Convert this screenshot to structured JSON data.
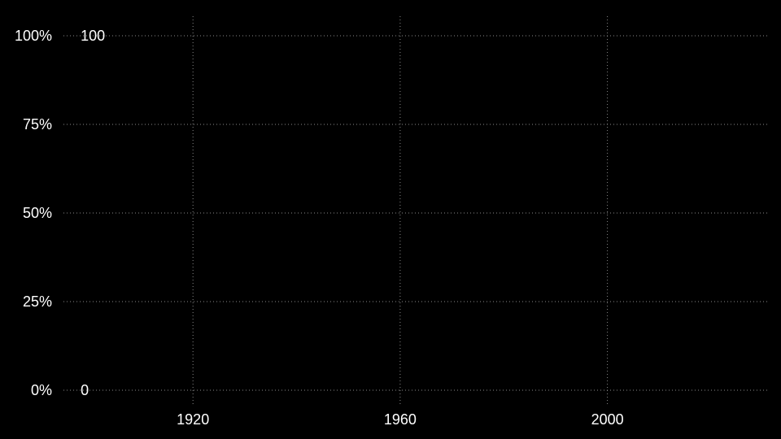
{
  "chart_data": {
    "type": "line",
    "title": "",
    "xlabel": "",
    "ylabel": "",
    "background": "#000000",
    "text_color": "#ffffff",
    "grid_color": "#8a8a8a",
    "grid": true,
    "xlim": [
      1895,
      2031
    ],
    "ylim": [
      0,
      1
    ],
    "x_ticks": [
      {
        "value": 1920,
        "label": "1920"
      },
      {
        "value": 1960,
        "label": "1960"
      },
      {
        "value": 2000,
        "label": "2000"
      }
    ],
    "y_ticks": [
      {
        "value": 0,
        "label": "0%"
      },
      {
        "value": 0.25,
        "label": "25%"
      },
      {
        "value": 0.5,
        "label": "50%"
      },
      {
        "value": 0.75,
        "label": "75%"
      },
      {
        "value": 1,
        "label": "100%"
      }
    ],
    "annotations": [
      {
        "x": 1898,
        "y": 1,
        "text": "100"
      },
      {
        "x": 1898,
        "y": 0,
        "text": "0"
      }
    ],
    "series": []
  }
}
